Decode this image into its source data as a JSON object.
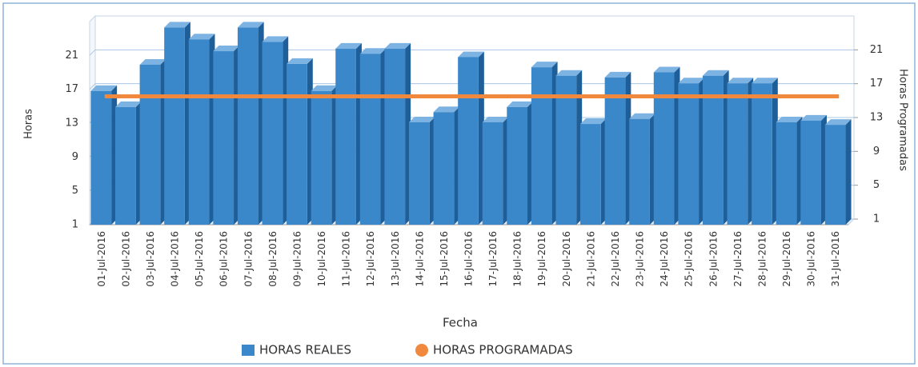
{
  "chart_data": {
    "type": "bar",
    "x_label": "Fecha",
    "y_label": "Horas",
    "y2_label": "Horas Programadas",
    "categories": [
      "01-Jul-2016",
      "02-Jul-2016",
      "03-Jul-2016",
      "04-Jul-2016",
      "05-Jul-2016",
      "06-Jul-2016",
      "07-Jul-2016",
      "08-Jul-2016",
      "09-Jul-2016",
      "10-Jul-2016",
      "11-Jul-2016",
      "12-Jul-2016",
      "13-Jul-2016",
      "14-Jul-2016",
      "15-Jul-2016",
      "16-Jul-2016",
      "17-Jul-2016",
      "18-Jul-2016",
      "19-Jul-2016",
      "20-Jul-2016",
      "21-Jul-2016",
      "22-Jul-2016",
      "23-Jul-2016",
      "24-Jul-2016",
      "25-Jul-2016",
      "26-Jul-2016",
      "27-Jul-2016",
      "28-Jul-2016",
      "29-Jul-2016",
      "30-Jul-2016",
      "31-Jul-2016"
    ],
    "series": [
      {
        "name": "HORAS REALES",
        "color": "#3a87c9",
        "type": "bar",
        "values": [
          16.8,
          14.9,
          19.9,
          24.3,
          22.9,
          21.5,
          24.3,
          22.6,
          20.0,
          16.8,
          21.8,
          21.2,
          21.8,
          13.1,
          14.3,
          20.8,
          13.1,
          14.9,
          19.6,
          18.6,
          12.9,
          18.4,
          13.5,
          19.0,
          17.7,
          18.6,
          17.7,
          17.7,
          13.1,
          13.3,
          12.8
        ]
      },
      {
        "name": "HORAS PROGRAMADAS",
        "color": "#f0883e",
        "type": "line",
        "axis": "y2",
        "values": [
          15.5,
          15.5,
          15.5,
          15.5,
          15.5,
          15.5,
          15.5,
          15.5,
          15.5,
          15.5,
          15.5,
          15.5,
          15.5,
          15.5,
          15.5,
          15.5,
          15.5,
          15.5,
          15.5,
          15.5,
          15.5,
          15.5,
          15.5,
          15.5,
          15.5,
          15.5,
          15.5,
          15.5,
          15.5,
          15.5,
          15.5
        ]
      }
    ],
    "ylim": [
      1,
      25
    ],
    "yticks": [
      1,
      5,
      9,
      13,
      17,
      21
    ],
    "y2lim": [
      1,
      25
    ],
    "y2ticks": [
      1,
      5,
      9,
      13,
      17,
      21
    ],
    "grid": true,
    "legend": "bottom"
  }
}
